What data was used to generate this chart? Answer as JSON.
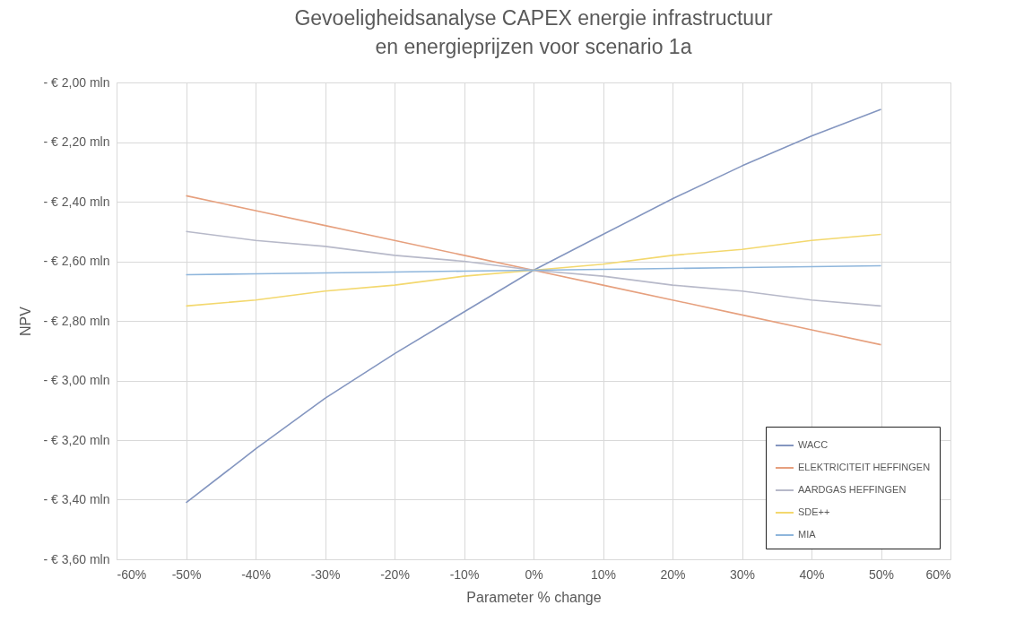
{
  "chart_data": {
    "type": "line",
    "title": "Gevoeligheidsanalyse CAPEX energie infrastructuur en energieprijzen voor scenario 1a",
    "xlabel": "Parameter % change",
    "ylabel": "NPV",
    "x": [
      -50,
      -40,
      -30,
      -20,
      -10,
      0,
      10,
      20,
      30,
      40,
      50
    ],
    "series": [
      {
        "name": "WACC",
        "color": "#8496c0",
        "values": [
          -3.41,
          -3.23,
          -3.06,
          -2.91,
          -2.77,
          -2.63,
          -2.51,
          -2.39,
          -2.28,
          -2.18,
          -2.09
        ]
      },
      {
        "name": "ELEKTRICITEIT HEFFINGEN",
        "color": "#e6a07e",
        "values": [
          -2.38,
          -2.43,
          -2.48,
          -2.53,
          -2.58,
          -2.63,
          -2.68,
          -2.73,
          -2.78,
          -2.83,
          -2.88
        ]
      },
      {
        "name": "AARDGAS HEFFINGEN",
        "color": "#b7b9c9",
        "values": [
          -2.5,
          -2.53,
          -2.55,
          -2.58,
          -2.6,
          -2.63,
          -2.65,
          -2.68,
          -2.7,
          -2.73,
          -2.75
        ]
      },
      {
        "name": "SDE++",
        "color": "#f3d86e",
        "values": [
          -2.75,
          -2.73,
          -2.7,
          -2.68,
          -2.65,
          -2.63,
          -2.61,
          -2.58,
          -2.56,
          -2.53,
          -2.51
        ]
      },
      {
        "name": "MIA",
        "color": "#8fb6dc",
        "values": [
          -2.645,
          -2.642,
          -2.639,
          -2.636,
          -2.633,
          -2.63,
          -2.627,
          -2.624,
          -2.621,
          -2.618,
          -2.615
        ]
      }
    ],
    "xlim": [
      -60,
      60
    ],
    "xticks": [
      {
        "value": -60,
        "label": "-60%"
      },
      {
        "value": -50,
        "label": "-50%"
      },
      {
        "value": -40,
        "label": "-40%"
      },
      {
        "value": -30,
        "label": "-30%"
      },
      {
        "value": -20,
        "label": "-20%"
      },
      {
        "value": -10,
        "label": "-10%"
      },
      {
        "value": 0,
        "label": "0%"
      },
      {
        "value": 10,
        "label": "10%"
      },
      {
        "value": 20,
        "label": "20%"
      },
      {
        "value": 30,
        "label": "30%"
      },
      {
        "value": 40,
        "label": "40%"
      },
      {
        "value": 50,
        "label": "50%"
      },
      {
        "value": 60,
        "label": "60%"
      }
    ],
    "ylim": [
      -3.6,
      -2.0
    ],
    "yticks": [
      {
        "value": -2.0,
        "label": "- € 2,00 mln"
      },
      {
        "value": -2.2,
        "label": "- € 2,20 mln"
      },
      {
        "value": -2.4,
        "label": "- € 2,40 mln"
      },
      {
        "value": -2.6,
        "label": "- € 2,60 mln"
      },
      {
        "value": -2.8,
        "label": "- € 2,80 mln"
      },
      {
        "value": -3.0,
        "label": "- € 3,00 mln"
      },
      {
        "value": -3.2,
        "label": "- € 3,20 mln"
      },
      {
        "value": -3.4,
        "label": "- € 3,40 mln"
      },
      {
        "value": -3.6,
        "label": "- € 3,60 mln"
      }
    ],
    "grid": true,
    "legend": "bottom right",
    "marker": "none",
    "line_style": "solid"
  }
}
